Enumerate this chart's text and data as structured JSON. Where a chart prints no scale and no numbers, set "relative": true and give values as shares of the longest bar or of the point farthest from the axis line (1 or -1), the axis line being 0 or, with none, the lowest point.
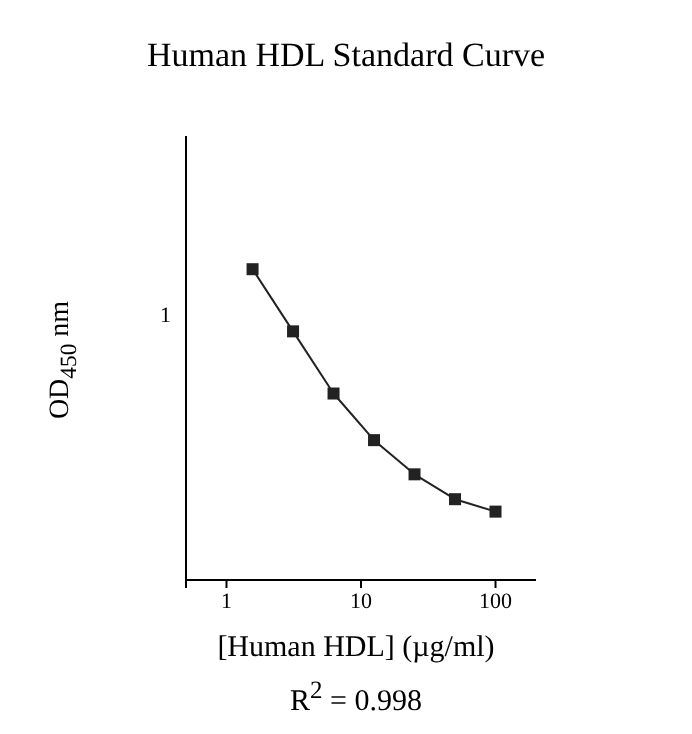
{
  "chart_data": {
    "type": "line",
    "title": "Human HDL Standard Curve",
    "xlabel": "[Human HDL] (µg/ml)",
    "ylabel": "OD$_{450}$ nm",
    "annotations": [
      "1",
      "R$^{2}$ = 0.998"
    ],
    "x": [
      1.5625,
      3.125,
      6.25,
      12.5,
      25,
      50,
      100
    ],
    "series": [
      {
        "color": "#222222",
        "values": [
          1,
          0.8,
          0.6,
          0.45,
          0.34,
          0.26,
          0.22
        ]
      }
    ],
    "relative": true,
    "log": "x",
    "xlim": [
      0.5,
      200
    ],
    "xticks": [
      {
        "value": 0.5,
        "label": null
      },
      1,
      10,
      100
    ],
    "marker": "square",
    "line_style": "solid",
    "grid": false,
    "legend": false
  }
}
